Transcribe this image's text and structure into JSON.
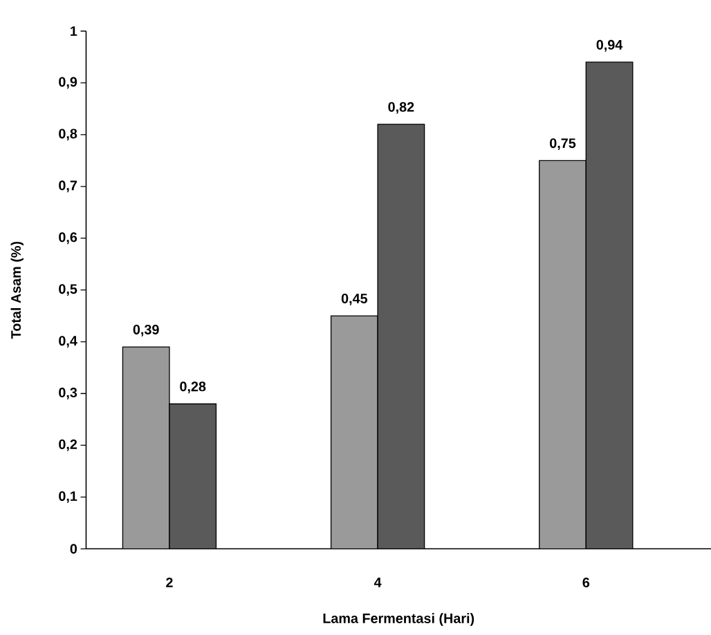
{
  "chart_data": {
    "type": "bar",
    "xlabel": "Lama Fermentasi (Hari)",
    "ylabel": "Total Asam (%)",
    "categories": [
      "2",
      "4",
      "6"
    ],
    "series": [
      {
        "color": "#9a9a9a",
        "values": [
          0.39,
          0.45,
          0.75
        ],
        "value_labels": [
          "0,39",
          "0,45",
          "0,75"
        ]
      },
      {
        "color": "#5a5a5a",
        "values": [
          0.28,
          0.82,
          0.94
        ],
        "value_labels": [
          "0,28",
          "0,82",
          "0,94"
        ]
      }
    ],
    "ylim": [
      0,
      1
    ],
    "yticks": [
      0,
      {
        "value": 0.1,
        "label": "0,1"
      },
      {
        "value": 0.2,
        "label": "0,2"
      },
      {
        "value": 0.3,
        "label": "0,3"
      },
      {
        "value": 0.4,
        "label": "0,4"
      },
      {
        "value": 0.5,
        "label": "0,5"
      },
      {
        "value": 0.6,
        "label": "0,6"
      },
      {
        "value": 0.7,
        "label": "0,7"
      },
      {
        "value": 0.8,
        "label": "0,8"
      },
      {
        "value": 0.9,
        "label": "0,9"
      },
      1
    ]
  }
}
